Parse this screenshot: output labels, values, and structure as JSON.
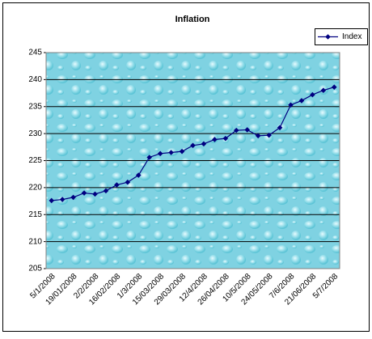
{
  "chart_data": {
    "type": "line",
    "title": "Inflation",
    "categories": [
      "5/1/2008",
      null,
      "19/01/2008",
      null,
      "2/2/2008",
      null,
      "16/02/2008",
      null,
      "1/3/2008",
      null,
      "15/03/2008",
      null,
      "29/03/2008",
      null,
      "12/4/2008",
      null,
      "26/04/2008",
      null,
      "10/5/2008",
      null,
      "24/05/2008",
      null,
      "7/6/2008",
      null,
      "21/06/2008",
      null,
      "5/7/2008"
    ],
    "series": [
      {
        "name": "Index",
        "color": "#000080",
        "values": [
          217.6,
          217.8,
          218.2,
          219.0,
          218.8,
          219.4,
          220.5,
          221.0,
          222.3,
          225.6,
          226.3,
          226.5,
          226.7,
          227.8,
          228.1,
          228.9,
          229.1,
          230.6,
          230.7,
          229.6,
          229.7,
          231.1,
          235.3,
          236.1,
          237.2,
          238.0,
          238.6
        ]
      }
    ],
    "ylim": [
      205,
      245
    ],
    "yticks": [
      205,
      210,
      215,
      220,
      225,
      230,
      235,
      240,
      245
    ],
    "grid": true,
    "legend": "top-right"
  }
}
